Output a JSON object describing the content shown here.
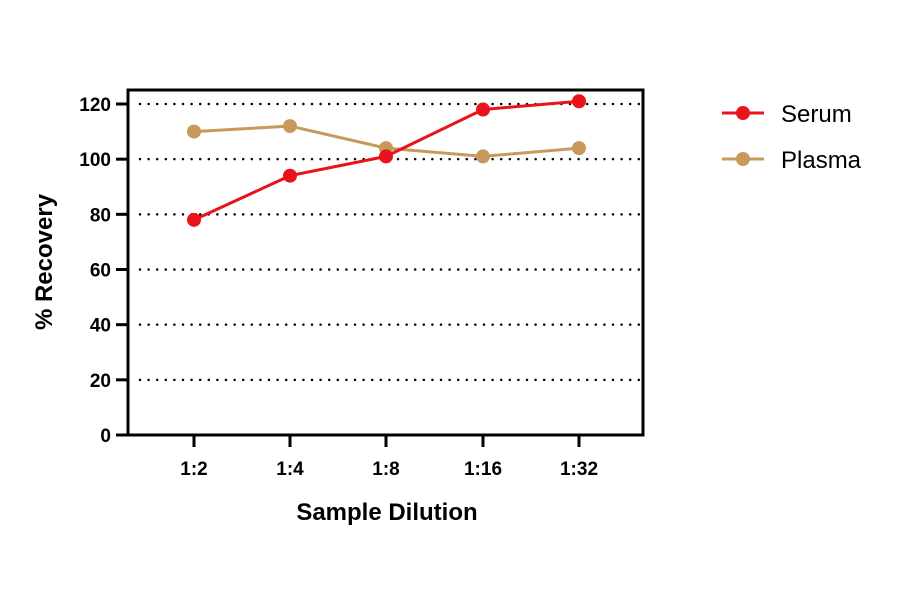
{
  "chart_data": {
    "type": "line",
    "title": "",
    "xlabel": "Sample Dilution",
    "ylabel": "% Recovery",
    "categories": [
      "1:2",
      "1:4",
      "1:8",
      "1:16",
      "1:32"
    ],
    "ylim": [
      0,
      120
    ],
    "yticks": [
      "0",
      "20",
      "40",
      "60",
      "80",
      "100",
      "120"
    ],
    "ytick_values": [
      0,
      20,
      40,
      60,
      80,
      100,
      120
    ],
    "grid": "horizontal dotted",
    "legend_position": "right-top",
    "series": [
      {
        "name": "Serum",
        "color": "#e8131b",
        "values": [
          78,
          94,
          101,
          118,
          121
        ]
      },
      {
        "name": "Plasma",
        "color": "#c9995b",
        "values": [
          110,
          112,
          104,
          101,
          104
        ]
      }
    ]
  }
}
